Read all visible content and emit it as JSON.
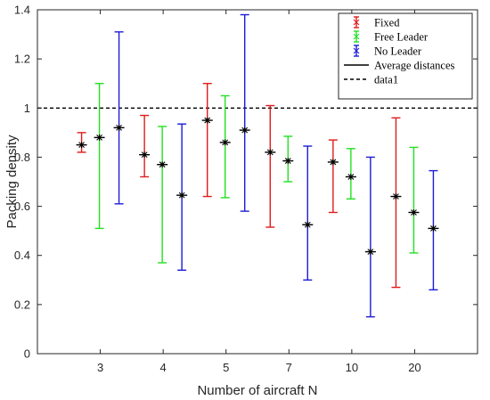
{
  "chart_data": {
    "type": "errorbar",
    "categories": [
      "3",
      "4",
      "5",
      "7",
      "10",
      "20"
    ],
    "xlabel": "Number of aircraft N",
    "ylabel": "Packing density",
    "ylim": [
      0,
      1.4
    ],
    "yticks": [
      "0",
      "0.2",
      "0.4",
      "0.6",
      "0.8",
      "1",
      "1.2",
      "1.4"
    ],
    "grid": false,
    "legend_position": "top-right",
    "reference_line": {
      "name": "data1",
      "y": 1.0,
      "style": "dashed",
      "color": "#000000"
    },
    "average_line_label": "Average distances",
    "series": [
      {
        "name": "Fixed",
        "color": "#e01b1b",
        "mean": [
          0.85,
          0.81,
          0.95,
          0.82,
          0.78,
          0.64
        ],
        "low": [
          0.82,
          0.72,
          0.64,
          0.515,
          0.575,
          0.27
        ],
        "high": [
          0.9,
          0.97,
          1.1,
          1.01,
          0.87,
          0.96
        ]
      },
      {
        "name": "Free Leader",
        "color": "#22e022",
        "mean": [
          0.88,
          0.77,
          0.86,
          0.785,
          0.72,
          0.575
        ],
        "low": [
          0.51,
          0.37,
          0.635,
          0.7,
          0.63,
          0.41
        ],
        "high": [
          1.1,
          0.925,
          1.05,
          0.885,
          0.835,
          0.84
        ]
      },
      {
        "name": "No Leader",
        "color": "#1c1cd6",
        "mean": [
          0.92,
          0.645,
          0.91,
          0.525,
          0.415,
          0.51
        ],
        "low": [
          0.61,
          0.34,
          0.58,
          0.3,
          0.15,
          0.26
        ],
        "high": [
          1.31,
          0.935,
          1.38,
          0.845,
          0.8,
          0.745
        ]
      }
    ]
  }
}
